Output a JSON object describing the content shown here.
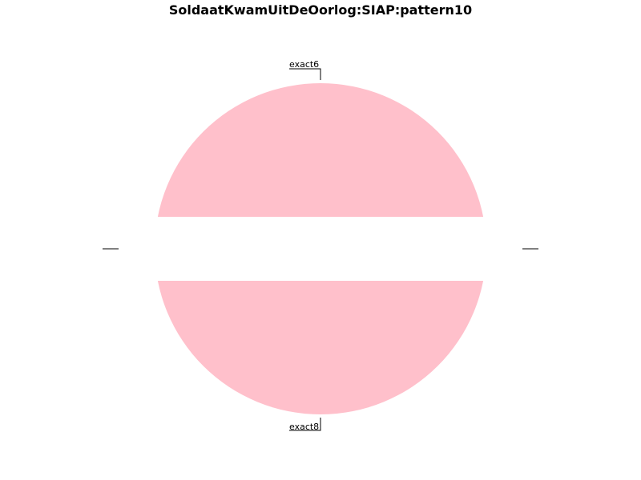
{
  "chart_data": {
    "type": "pie",
    "title": "SoldaatKwamUitDeOorlog:SIAP:pattern10",
    "slices": [
      {
        "label": "exact6",
        "value": 50,
        "color": "#ffc0cb"
      },
      {
        "label": "",
        "value": 0,
        "color": "#ffc0cb"
      },
      {
        "label": "exact8",
        "value": 50,
        "color": "#ffc0cb"
      },
      {
        "label": "",
        "value": 0,
        "color": "#ffc0cb"
      }
    ],
    "legend": "none"
  }
}
